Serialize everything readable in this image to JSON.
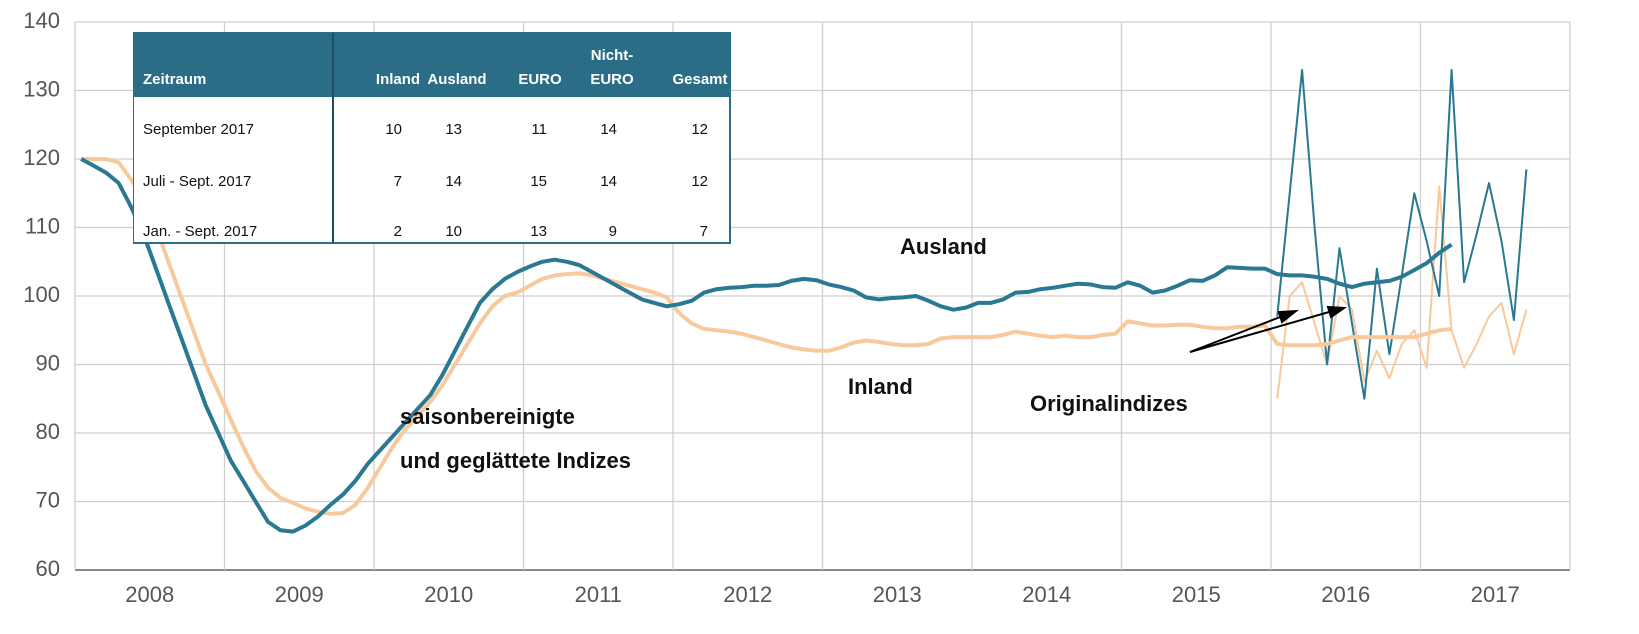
{
  "chart_data": {
    "type": "line",
    "categories": [
      "2008",
      "2009",
      "2010",
      "2011",
      "2012",
      "2013",
      "2014",
      "2015",
      "2016",
      "2017"
    ],
    "ylim": [
      60,
      140
    ],
    "yticks": [
      60,
      70,
      80,
      90,
      100,
      110,
      120,
      130,
      140
    ],
    "grid": true,
    "series": [
      {
        "name": "Ausland",
        "color": "#2a7891",
        "values": [
          [
            120,
            119,
            118,
            116.5,
            113,
            109,
            104,
            99,
            94,
            89,
            84,
            80
          ],
          [
            76,
            73,
            70,
            67,
            65.8,
            65.6,
            66.5,
            67.8,
            69.5,
            71,
            73,
            75.5
          ],
          [
            77.5,
            79.5,
            81.5,
            83.5,
            85.5,
            88.5,
            92,
            95.5,
            99,
            101,
            102.5,
            103.5
          ],
          [
            104.3,
            105,
            105.3,
            105,
            104.5,
            103.5,
            102.5,
            101.5,
            100.5,
            99.5,
            99,
            98.5
          ],
          [
            98.8,
            99.3,
            100.5,
            101,
            101.2,
            101.3,
            101.5,
            101.5,
            101.6,
            102.2,
            102.5,
            102.3
          ],
          [
            101.7,
            101.3,
            100.8,
            99.8,
            99.5,
            99.7,
            99.8,
            100,
            99.3,
            98.5,
            98,
            98.3
          ],
          [
            99,
            99,
            99.5,
            100.5,
            100.6,
            101,
            101.2,
            101.5,
            101.8,
            101.7,
            101.3,
            101.2
          ],
          [
            102,
            101.5,
            100.5,
            100.8,
            101.5,
            102.3,
            102.2,
            103,
            104.2,
            104.1,
            104,
            104
          ],
          [
            103.2,
            103,
            103,
            102.8,
            102.5,
            101.8,
            101.3,
            101.8,
            102,
            102.2,
            102.8,
            103.8
          ],
          [
            104.8,
            106.3,
            107.5,
            null,
            null,
            null,
            null,
            null,
            null,
            null,
            null,
            null
          ]
        ],
        "original": [
          [
            null,
            null,
            null,
            null,
            null,
            null,
            null,
            null,
            null,
            null,
            null,
            null
          ],
          [
            null,
            null,
            null,
            null,
            null,
            null,
            null,
            null,
            null,
            null,
            null,
            null
          ],
          [
            null,
            null,
            null,
            null,
            null,
            null,
            null,
            null,
            null,
            null,
            null,
            null
          ],
          [
            null,
            null,
            null,
            null,
            null,
            null,
            null,
            null,
            null,
            null,
            null,
            null
          ],
          [
            null,
            null,
            null,
            null,
            null,
            null,
            null,
            null,
            null,
            null,
            null,
            null
          ],
          [
            null,
            null,
            null,
            null,
            null,
            null,
            null,
            null,
            null,
            null,
            null,
            null
          ],
          [
            null,
            null,
            null,
            null,
            null,
            null,
            null,
            null,
            null,
            null,
            null,
            null
          ],
          [
            null,
            null,
            null,
            null,
            null,
            null,
            null,
            null,
            null,
            null,
            null,
            null
          ],
          [
            97,
            115,
            133,
            110,
            90,
            107,
            96,
            85,
            104,
            91.5,
            103,
            115
          ],
          [
            108,
            100,
            133,
            102,
            109,
            116.5,
            108,
            96.5,
            118.5,
            null,
            null,
            null
          ]
        ]
      },
      {
        "name": "Inland",
        "color": "#f8c99c",
        "values": [
          [
            120,
            120,
            120,
            119.5,
            117,
            114,
            110,
            105,
            100,
            95,
            90,
            86
          ],
          [
            82,
            78,
            74.5,
            72,
            70.5,
            69.8,
            69,
            68.5,
            68.2,
            68.3,
            69.5,
            72
          ],
          [
            75,
            78,
            80.5,
            82.5,
            84.5,
            87,
            90,
            93,
            96,
            98.5,
            100,
            100.5
          ],
          [
            101.5,
            102.5,
            103,
            103.2,
            103.3,
            103,
            102.5,
            102,
            101.5,
            101,
            100.5,
            99.8
          ],
          [
            97.5,
            96,
            95.2,
            95,
            94.8,
            94.5,
            94,
            93.5,
            93,
            92.5,
            92.2,
            92
          ],
          [
            92,
            92.5,
            93.2,
            93.5,
            93.3,
            93,
            92.8,
            92.8,
            93,
            93.8,
            94,
            94
          ],
          [
            94,
            94,
            94.3,
            94.8,
            94.5,
            94.2,
            94,
            94.2,
            94,
            94,
            94.3,
            94.5
          ],
          [
            96.3,
            96,
            95.7,
            95.7,
            95.8,
            95.8,
            95.5,
            95.3,
            95.3,
            95.5,
            95.5,
            95.7
          ],
          [
            93,
            92.8,
            92.8,
            92.8,
            93,
            93.5,
            94,
            94,
            94,
            94,
            94,
            94
          ],
          [
            94.5,
            95,
            95.2,
            null,
            null,
            null,
            null,
            null,
            null,
            null,
            null,
            null
          ]
        ],
        "original": [
          [
            null,
            null,
            null,
            null,
            null,
            null,
            null,
            null,
            null,
            null,
            null,
            null
          ],
          [
            null,
            null,
            null,
            null,
            null,
            null,
            null,
            null,
            null,
            null,
            null,
            null
          ],
          [
            null,
            null,
            null,
            null,
            null,
            null,
            null,
            null,
            null,
            null,
            null,
            null
          ],
          [
            null,
            null,
            null,
            null,
            null,
            null,
            null,
            null,
            null,
            null,
            null,
            null
          ],
          [
            null,
            null,
            null,
            null,
            null,
            null,
            null,
            null,
            null,
            null,
            null,
            null
          ],
          [
            null,
            null,
            null,
            null,
            null,
            null,
            null,
            null,
            null,
            null,
            null,
            null
          ],
          [
            null,
            null,
            null,
            null,
            null,
            null,
            null,
            null,
            null,
            null,
            null,
            null
          ],
          [
            null,
            null,
            null,
            null,
            null,
            null,
            null,
            null,
            null,
            null,
            null,
            null
          ],
          [
            85,
            100,
            102,
            96,
            90,
            100,
            98,
            87.5,
            92,
            88,
            93,
            95
          ],
          [
            89.5,
            116,
            95,
            89.5,
            93,
            97,
            99,
            91.5,
            98,
            null,
            null,
            null
          ]
        ]
      }
    ],
    "annotations": [
      "saisonbereinigte",
      "und geglättete Indizes",
      "Originalindizes"
    ],
    "table": {
      "columns": [
        "Zeitraum",
        "Inland",
        "Ausland",
        "EURO",
        [
          "Nicht-",
          "EURO"
        ],
        "Gesamt"
      ],
      "rows": [
        [
          "September 2017",
          10,
          13,
          11,
          14,
          12
        ],
        [
          "Juli - Sept. 2017",
          7,
          14,
          15,
          14,
          12
        ],
        [
          "Jan. - Sept. 2017",
          2,
          10,
          13,
          9,
          7
        ]
      ]
    }
  }
}
